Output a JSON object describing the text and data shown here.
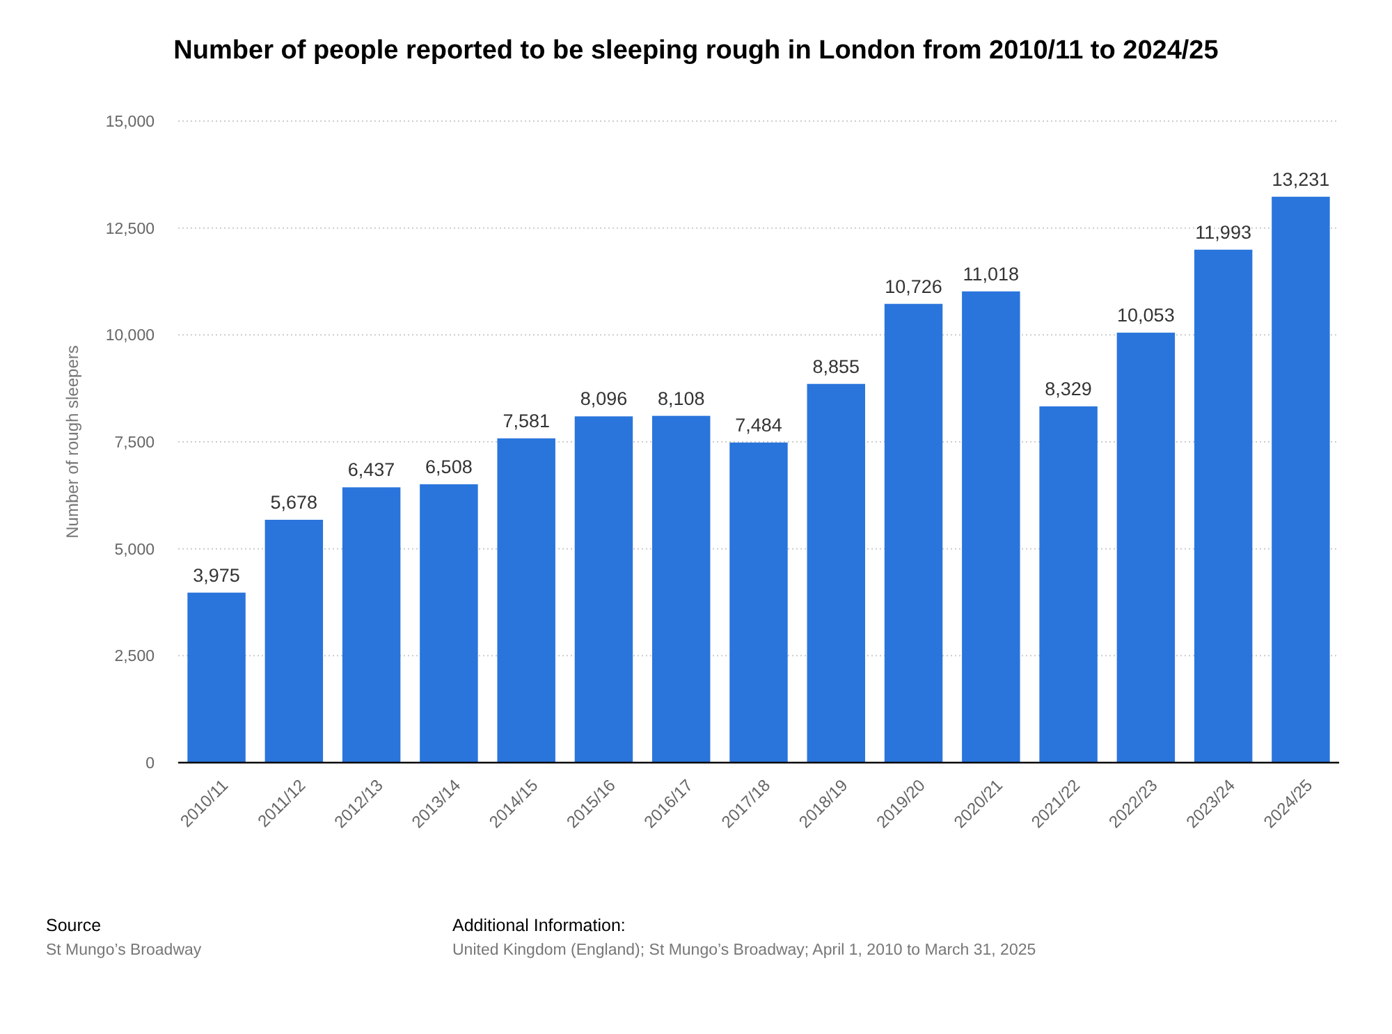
{
  "chart_data": {
    "type": "bar",
    "title": "Number of people reported to be sleeping rough in London from 2010/11 to 2024/25",
    "ylabel": "Number of rough sleepers",
    "categories": [
      "2010/11",
      "2011/12",
      "2012/13",
      "2013/14",
      "2014/15",
      "2015/16",
      "2016/17",
      "2017/18",
      "2018/19",
      "2019/20",
      "2020/21",
      "2021/22",
      "2022/23",
      "2023/24",
      "2024/25"
    ],
    "values": [
      3975,
      5678,
      6437,
      6508,
      7581,
      8096,
      8108,
      7484,
      8855,
      10726,
      11018,
      8329,
      10053,
      11993,
      13231
    ],
    "color": "#2a75dc",
    "ylim": [
      0,
      15000
    ],
    "yticks": [
      {
        "value": 0,
        "label": "0"
      },
      {
        "value": 2500,
        "label": "2,500"
      },
      {
        "value": 5000,
        "label": "5,000"
      },
      {
        "value": 7500,
        "label": "7,500"
      },
      {
        "value": 10000,
        "label": "10,000"
      },
      {
        "value": 12500,
        "label": "12,500"
      },
      {
        "value": 15000,
        "label": "15,000"
      }
    ],
    "grid": "y",
    "value_labels": [
      "3,975",
      "5,678",
      "6,437",
      "6,508",
      "7,581",
      "8,096",
      "8,108",
      "7,484",
      "8,855",
      "10,726",
      "11,018",
      "8,329",
      "10,053",
      "11,993",
      "13,231"
    ],
    "annotations": [
      "Source",
      "St Mungo’s Broadway",
      "Additional Information:",
      "United Kingdom (England); St Mungo’s Broadway; April 1, 2010 to March 31, 2025"
    ]
  }
}
